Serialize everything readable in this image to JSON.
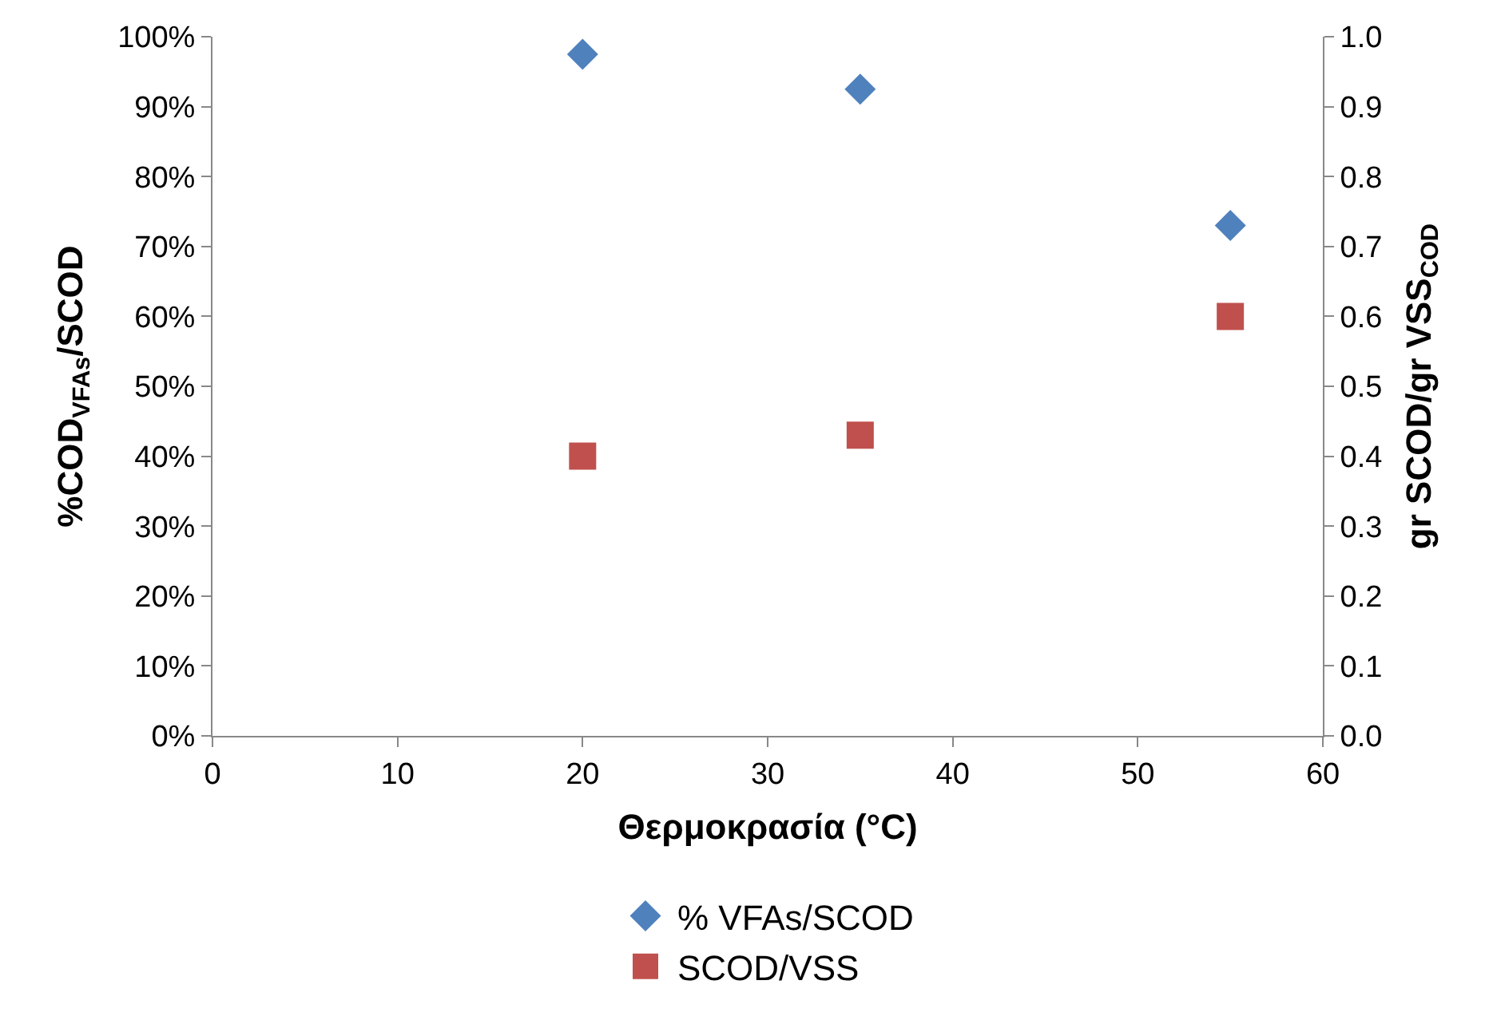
{
  "chart_data": {
    "type": "scatter",
    "xlabel": "Θερμοκρασία (°C)",
    "ylabel": "%COD$_{VFAs}$/SCOD",
    "y2label": "gr SCOD/gr VSS$_{COD}$",
    "x": [
      20,
      35,
      55
    ],
    "series": [
      {
        "name": "% VFAs/SCOD",
        "color": "#4f81bd",
        "values": [
          97.5,
          92.5,
          73
        ],
        "marker": "diamond"
      },
      {
        "name": "SCOD/VSS",
        "color": "#c0504d",
        "values": [
          0.4,
          0.43,
          0.6
        ],
        "marker": "square",
        "axis": "y2"
      }
    ],
    "xlim": [
      0,
      60
    ],
    "xticks": [
      0,
      10,
      20,
      30,
      40,
      50,
      60
    ],
    "ylim": [
      0,
      100
    ],
    "yticks": [
      {
        "value": 0,
        "label": "0%"
      },
      {
        "value": 10,
        "label": "10%"
      },
      {
        "value": 20,
        "label": "20%"
      },
      {
        "value": 30,
        "label": "30%"
      },
      {
        "value": 40,
        "label": "40%"
      },
      {
        "value": 50,
        "label": "50%"
      },
      {
        "value": 60,
        "label": "60%"
      },
      {
        "value": 70,
        "label": "70%"
      },
      {
        "value": 80,
        "label": "80%"
      },
      {
        "value": 90,
        "label": "90%"
      },
      {
        "value": 100,
        "label": "100%"
      }
    ],
    "y2lim": [
      0,
      1
    ],
    "y2ticks": [
      {
        "value": 0,
        "label": "0.0"
      },
      0.1,
      0.2,
      0.3,
      0.4,
      0.5,
      0.6,
      0.7,
      0.8,
      0.9,
      {
        "value": 1,
        "label": "1.0"
      }
    ],
    "legend": "bottom"
  }
}
